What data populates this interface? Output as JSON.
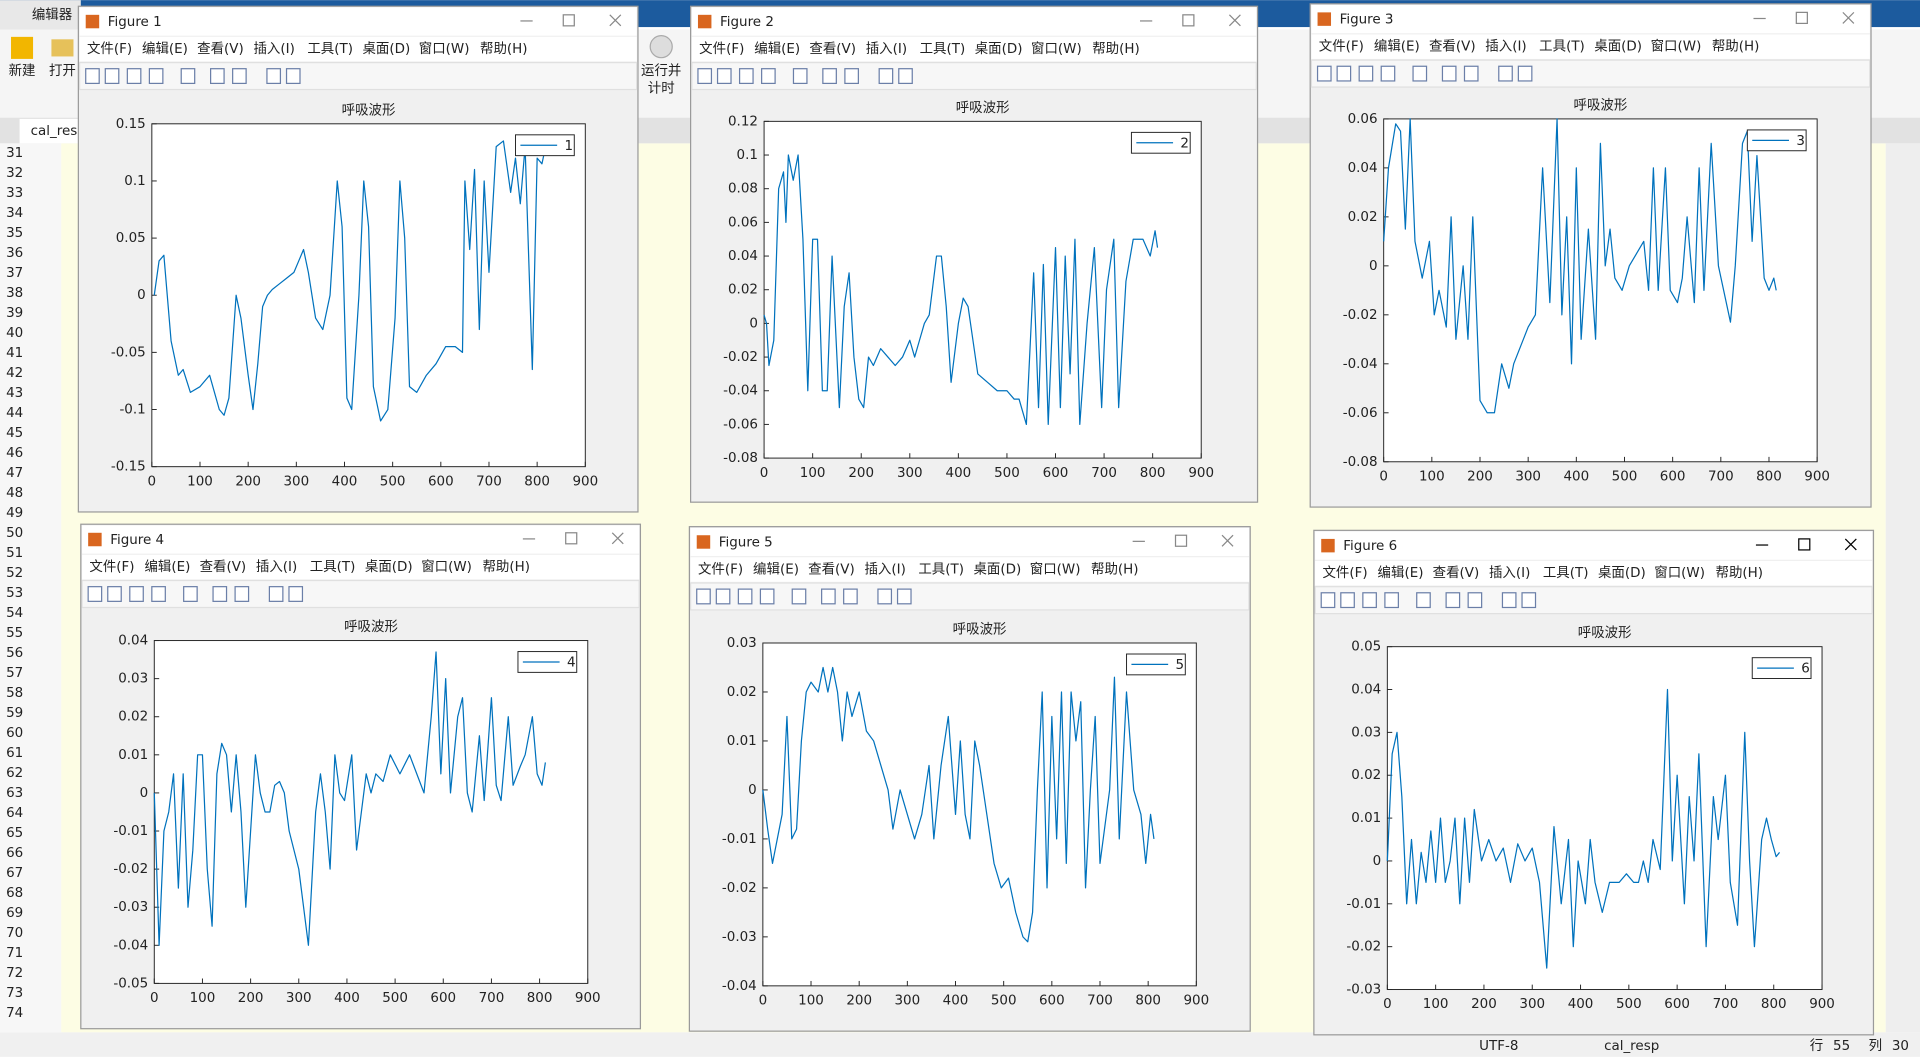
{
  "app_tab": "编辑器",
  "toolbar": [
    "新建",
    "打开",
    "运行并",
    "计时"
  ],
  "file_tab": "cal_resp",
  "line_numbers": [
    31,
    32,
    33,
    34,
    35,
    36,
    37,
    38,
    39,
    40,
    41,
    42,
    43,
    44,
    45,
    46,
    47,
    48,
    49,
    50,
    51,
    52,
    53,
    54,
    55,
    56,
    57,
    58,
    59,
    60,
    61,
    62,
    63,
    64,
    65,
    66,
    67,
    68,
    69,
    70,
    71,
    72,
    73,
    74
  ],
  "status": [
    "UTF-8",
    "cal_resp",
    "行",
    "55",
    "列",
    "30"
  ],
  "figure_titles": [
    "Figure 1",
    "Figure 2",
    "Figure 3",
    "Figure 4",
    "Figure 5",
    "Figure 6"
  ],
  "menu": [
    "文件(F)",
    "编辑(E)",
    "查看(V)",
    "插入(I)",
    "工具(T)",
    "桌面(D)",
    "窗口(W)",
    "帮助(H)"
  ],
  "chart_data": [
    {
      "type": "line",
      "title": "呼吸波形",
      "xlim": [
        0,
        900
      ],
      "xticks": [
        0,
        100,
        200,
        300,
        400,
        500,
        600,
        700,
        800,
        900
      ],
      "ylim": [
        -0.15,
        0.15
      ],
      "yticks": [
        -0.15,
        -0.1,
        -0.05,
        0,
        0.05,
        0.1,
        0.15
      ],
      "legend": "upper right",
      "x": [
        5,
        15,
        25,
        40,
        55,
        65,
        80,
        100,
        120,
        140,
        150,
        160,
        175,
        185,
        200,
        210,
        220,
        230,
        240,
        250,
        265,
        280,
        295,
        305,
        315,
        325,
        340,
        355,
        370,
        385,
        395,
        405,
        415,
        430,
        440,
        450,
        460,
        475,
        490,
        505,
        515,
        525,
        535,
        550,
        570,
        590,
        610,
        630,
        645,
        650,
        660,
        670,
        680,
        690,
        700,
        715,
        730,
        745,
        755,
        765,
        775,
        790,
        800,
        810,
        815
      ],
      "series": [
        {
          "name": "1",
          "color": "#0072bd",
          "values": [
            0,
            0.03,
            0.035,
            -0.04,
            -0.07,
            -0.065,
            -0.085,
            -0.08,
            -0.07,
            -0.1,
            -0.105,
            -0.09,
            0,
            -0.02,
            -0.07,
            -0.1,
            -0.06,
            -0.01,
            0,
            0.005,
            0.01,
            0.015,
            0.02,
            0.03,
            0.04,
            0.02,
            -0.02,
            -0.03,
            0,
            0.1,
            0.06,
            -0.09,
            -0.1,
            0,
            0.1,
            0.06,
            -0.08,
            -0.11,
            -0.1,
            -0.02,
            0.1,
            0.05,
            -0.08,
            -0.085,
            -0.07,
            -0.06,
            -0.045,
            -0.045,
            -0.05,
            0.1,
            0.04,
            0.11,
            -0.03,
            0.1,
            0.02,
            0.13,
            0.135,
            0.09,
            0.12,
            0.08,
            0.13,
            -0.065,
            0.12,
            0.115,
            0.125
          ]
        }
      ]
    },
    {
      "type": "line",
      "title": "呼吸波形",
      "xlim": [
        0,
        900
      ],
      "xticks": [
        0,
        100,
        200,
        300,
        400,
        500,
        600,
        700,
        800,
        900
      ],
      "ylim": [
        -0.08,
        0.12
      ],
      "yticks": [
        -0.08,
        -0.06,
        -0.04,
        -0.02,
        0,
        0.02,
        0.04,
        0.06,
        0.08,
        0.1,
        0.12
      ],
      "legend": "upper right",
      "x": [
        0,
        5,
        10,
        20,
        30,
        40,
        45,
        50,
        60,
        70,
        80,
        90,
        100,
        110,
        120,
        130,
        140,
        155,
        165,
        175,
        185,
        195,
        205,
        215,
        225,
        240,
        255,
        270,
        285,
        300,
        310,
        320,
        330,
        340,
        355,
        365,
        375,
        385,
        400,
        410,
        420,
        440,
        460,
        480,
        500,
        515,
        525,
        540,
        555,
        565,
        575,
        585,
        600,
        610,
        620,
        630,
        640,
        650,
        665,
        680,
        695,
        705,
        720,
        730,
        745,
        760,
        770,
        780,
        795,
        805,
        810
      ],
      "series": [
        {
          "name": "2",
          "color": "#0072bd",
          "values": [
            0.005,
            0,
            -0.025,
            -0.01,
            0.08,
            0.09,
            0.06,
            0.1,
            0.085,
            0.1,
            0.05,
            -0.04,
            0.05,
            0.05,
            -0.04,
            -0.04,
            0.04,
            -0.05,
            0.01,
            0.03,
            -0.02,
            -0.045,
            -0.05,
            -0.02,
            -0.025,
            -0.015,
            -0.02,
            -0.025,
            -0.02,
            -0.01,
            -0.02,
            -0.01,
            0,
            0.005,
            0.04,
            0.04,
            0.01,
            -0.035,
            0,
            0.015,
            0.01,
            -0.03,
            -0.035,
            -0.04,
            -0.04,
            -0.045,
            -0.045,
            -0.06,
            0.03,
            -0.05,
            0.035,
            -0.06,
            0.045,
            -0.05,
            0.04,
            -0.03,
            0.05,
            -0.06,
            0,
            0.045,
            -0.05,
            0.02,
            0.05,
            -0.05,
            0.025,
            0.05,
            0.05,
            0.05,
            0.04,
            0.055,
            0.045
          ]
        }
      ]
    },
    {
      "type": "line",
      "title": "呼吸波形",
      "xlim": [
        0,
        900
      ],
      "xticks": [
        0,
        100,
        200,
        300,
        400,
        500,
        600,
        700,
        800,
        900
      ],
      "ylim": [
        -0.08,
        0.06
      ],
      "yticks": [
        -0.08,
        -0.06,
        -0.04,
        -0.02,
        0,
        0.02,
        0.04,
        0.06
      ],
      "legend": "upper right",
      "x": [
        0,
        10,
        25,
        35,
        45,
        55,
        65,
        80,
        95,
        105,
        115,
        130,
        140,
        150,
        165,
        175,
        185,
        200,
        215,
        230,
        245,
        260,
        270,
        280,
        290,
        300,
        315,
        330,
        345,
        360,
        370,
        380,
        390,
        400,
        410,
        425,
        440,
        450,
        460,
        470,
        480,
        495,
        510,
        525,
        540,
        550,
        560,
        570,
        585,
        595,
        610,
        620,
        630,
        645,
        655,
        665,
        680,
        695,
        720,
        730,
        745,
        755,
        765,
        775,
        790,
        800,
        810,
        815
      ],
      "series": [
        {
          "name": "3",
          "color": "#0072bd",
          "values": [
            0.01,
            0.04,
            0.058,
            0.055,
            0.015,
            0.06,
            0.01,
            -0.005,
            0.01,
            -0.02,
            -0.01,
            -0.025,
            0.02,
            -0.03,
            0,
            -0.03,
            0.02,
            -0.055,
            -0.06,
            -0.06,
            -0.04,
            -0.05,
            -0.04,
            -0.035,
            -0.03,
            -0.025,
            -0.02,
            0.04,
            -0.015,
            0.06,
            -0.02,
            0.02,
            -0.04,
            0.04,
            -0.03,
            0.015,
            -0.03,
            0.05,
            0,
            0.015,
            -0.005,
            -0.01,
            0,
            0.005,
            0.01,
            -0.01,
            0.04,
            -0.01,
            0.04,
            -0.01,
            -0.015,
            -0.005,
            0.02,
            -0.015,
            0.04,
            -0.01,
            0.05,
            0,
            -0.023,
            0,
            0.05,
            0.055,
            0.01,
            0.045,
            -0.005,
            -0.01,
            -0.005,
            -0.01
          ]
        }
      ]
    },
    {
      "type": "line",
      "title": "呼吸波形",
      "xlim": [
        0,
        900
      ],
      "xticks": [
        0,
        100,
        200,
        300,
        400,
        500,
        600,
        700,
        800,
        900
      ],
      "ylim": [
        -0.05,
        0.04
      ],
      "yticks": [
        -0.05,
        -0.04,
        -0.03,
        -0.02,
        -0.01,
        0,
        0.01,
        0.02,
        0.03,
        0.04
      ],
      "legend": "upper right",
      "x": [
        0,
        10,
        20,
        30,
        40,
        50,
        60,
        70,
        80,
        90,
        100,
        110,
        120,
        130,
        140,
        150,
        160,
        170,
        180,
        190,
        200,
        210,
        220,
        230,
        240,
        250,
        260,
        270,
        280,
        300,
        320,
        335,
        345,
        355,
        365,
        375,
        385,
        395,
        410,
        420,
        430,
        440,
        450,
        460,
        475,
        490,
        510,
        530,
        545,
        560,
        575,
        585,
        595,
        605,
        615,
        630,
        640,
        650,
        660,
        675,
        685,
        700,
        710,
        720,
        735,
        745,
        760,
        770,
        785,
        795,
        805,
        812
      ],
      "series": [
        {
          "name": "4",
          "color": "#0072bd",
          "values": [
            0,
            -0.04,
            -0.01,
            -0.005,
            0.005,
            -0.025,
            0.005,
            -0.03,
            -0.015,
            0.01,
            0.01,
            -0.02,
            -0.035,
            0.005,
            0.013,
            0.01,
            -0.005,
            0.01,
            -0.005,
            -0.03,
            -0.01,
            0.01,
            0,
            -0.005,
            -0.005,
            0.002,
            0.003,
            0,
            -0.01,
            -0.02,
            -0.04,
            -0.005,
            0.005,
            -0.005,
            -0.02,
            0.01,
            0,
            -0.002,
            0.01,
            -0.015,
            -0.005,
            0.005,
            0,
            0.005,
            0.003,
            0.01,
            0.005,
            0.01,
            0.005,
            0,
            0.02,
            0.037,
            0.005,
            0.03,
            0,
            0.02,
            0.025,
            0,
            -0.005,
            0.015,
            -0.002,
            0.025,
            0.002,
            -0.002,
            0.02,
            0.002,
            0.007,
            0.01,
            0.02,
            0.005,
            0.002,
            0.008
          ]
        }
      ]
    },
    {
      "type": "line",
      "title": "呼吸波形",
      "xlim": [
        0,
        900
      ],
      "xticks": [
        0,
        100,
        200,
        300,
        400,
        500,
        600,
        700,
        800,
        900
      ],
      "ylim": [
        -0.04,
        0.03
      ],
      "yticks": [
        -0.04,
        -0.03,
        -0.02,
        -0.01,
        0,
        0.01,
        0.02,
        0.03
      ],
      "legend": "upper right",
      "x": [
        0,
        10,
        20,
        30,
        40,
        50,
        60,
        70,
        80,
        90,
        100,
        115,
        125,
        135,
        145,
        155,
        165,
        175,
        185,
        200,
        215,
        230,
        245,
        260,
        270,
        285,
        300,
        315,
        330,
        345,
        355,
        370,
        385,
        400,
        410,
        420,
        430,
        440,
        450,
        465,
        480,
        495,
        510,
        525,
        540,
        550,
        560,
        570,
        580,
        590,
        600,
        610,
        620,
        630,
        640,
        650,
        660,
        670,
        680,
        690,
        700,
        720,
        730,
        740,
        755,
        770,
        785,
        795,
        805,
        812
      ],
      "series": [
        {
          "name": "5",
          "color": "#0072bd",
          "values": [
            0,
            -0.008,
            -0.015,
            -0.01,
            -0.005,
            0.015,
            -0.01,
            -0.008,
            0.01,
            0.02,
            0.022,
            0.02,
            0.025,
            0.02,
            0.025,
            0.02,
            0.01,
            0.02,
            0.015,
            0.02,
            0.012,
            0.01,
            0.005,
            0,
            -0.008,
            0,
            -0.005,
            -0.01,
            -0.005,
            0.005,
            -0.01,
            0.005,
            0.015,
            -0.005,
            0.01,
            -0.005,
            -0.01,
            0.01,
            0.005,
            -0.005,
            -0.015,
            -0.02,
            -0.018,
            -0.025,
            -0.03,
            -0.031,
            -0.025,
            0,
            0.02,
            -0.02,
            0.015,
            -0.01,
            0.02,
            -0.015,
            0.02,
            0.01,
            0.018,
            -0.02,
            0,
            0.015,
            -0.015,
            0,
            0.023,
            -0.01,
            0.02,
            0,
            -0.005,
            -0.015,
            -0.005,
            -0.01
          ]
        }
      ]
    },
    {
      "type": "line",
      "title": "呼吸波形",
      "xlim": [
        0,
        900
      ],
      "xticks": [
        0,
        100,
        200,
        300,
        400,
        500,
        600,
        700,
        800,
        900
      ],
      "ylim": [
        -0.03,
        0.05
      ],
      "yticks": [
        -0.03,
        -0.02,
        -0.01,
        0,
        0.01,
        0.02,
        0.03,
        0.04,
        0.05
      ],
      "legend": "upper right",
      "x": [
        0,
        10,
        20,
        30,
        40,
        50,
        60,
        70,
        80,
        90,
        100,
        110,
        120,
        130,
        140,
        150,
        160,
        170,
        180,
        195,
        210,
        225,
        240,
        255,
        270,
        285,
        300,
        315,
        330,
        345,
        360,
        375,
        385,
        395,
        410,
        420,
        430,
        445,
        460,
        480,
        495,
        510,
        520,
        530,
        540,
        550,
        565,
        580,
        590,
        600,
        615,
        625,
        635,
        645,
        660,
        675,
        685,
        700,
        710,
        725,
        740,
        750,
        760,
        775,
        785,
        795,
        805,
        812
      ],
      "series": [
        {
          "name": "6",
          "color": "#0072bd",
          "values": [
            0,
            0.025,
            0.03,
            0.015,
            -0.01,
            0.005,
            -0.01,
            0.002,
            -0.005,
            0.007,
            -0.005,
            0.01,
            -0.005,
            0,
            0.01,
            -0.01,
            0.01,
            -0.005,
            0.012,
            0,
            0.005,
            0,
            0.003,
            -0.005,
            0.004,
            0,
            0.003,
            -0.005,
            -0.025,
            0.008,
            -0.01,
            0.005,
            -0.02,
            0,
            -0.01,
            0.005,
            -0.005,
            -0.012,
            -0.005,
            -0.005,
            -0.003,
            -0.005,
            -0.005,
            0,
            -0.005,
            0.005,
            -0.002,
            0.04,
            0,
            0.02,
            -0.01,
            0.015,
            0,
            0.025,
            -0.02,
            0.015,
            0.005,
            0.02,
            -0.005,
            -0.015,
            0.03,
            0,
            -0.02,
            0.005,
            0.01,
            0.005,
            0.001,
            0.002
          ]
        }
      ]
    }
  ]
}
